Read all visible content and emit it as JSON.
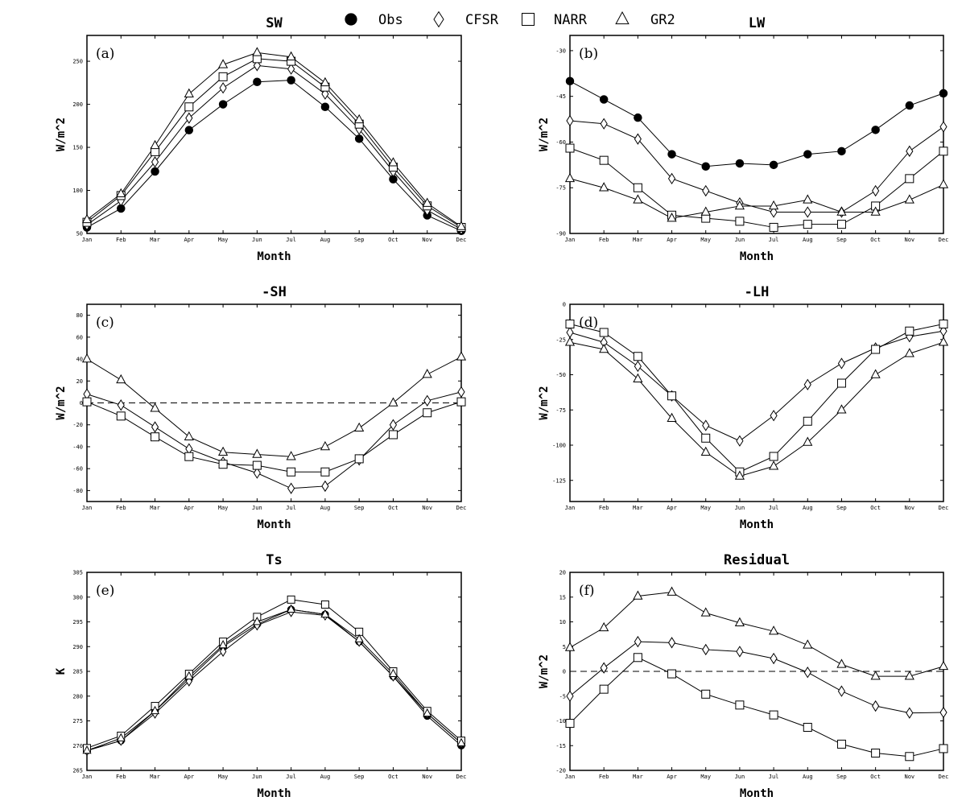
{
  "legend": {
    "entries": [
      {
        "name": "Obs",
        "marker": "circle-filled"
      },
      {
        "name": "CFSR",
        "marker": "diamond"
      },
      {
        "name": "NARR",
        "marker": "square"
      },
      {
        "name": "GR2",
        "marker": "triangle"
      }
    ]
  },
  "chart_data": [
    {
      "type": "line",
      "id": "a",
      "title": "SW",
      "tag": "(a)",
      "xlabel": "Month",
      "ylabel": "W/m^2",
      "categories": [
        "Jan",
        "Feb",
        "Mar",
        "Apr",
        "May",
        "Jun",
        "Jul",
        "Aug",
        "Sep",
        "Oct",
        "Nov",
        "Dec"
      ],
      "ylim": [
        50,
        280
      ],
      "yticks": [
        50,
        100,
        150,
        200,
        250
      ],
      "zero_line": false,
      "series": [
        {
          "name": "Obs",
          "marker": "circle-filled",
          "values": [
            57,
            79,
            122,
            170,
            200,
            226,
            228,
            197,
            160,
            113,
            71,
            53
          ]
        },
        {
          "name": "CFSR",
          "marker": "diamond",
          "values": [
            60,
            88,
            133,
            184,
            219,
            245,
            241,
            212,
            171,
            122,
            77,
            55
          ]
        },
        {
          "name": "NARR",
          "marker": "square",
          "values": [
            63,
            94,
            145,
            197,
            232,
            253,
            250,
            220,
            177,
            127,
            82,
            57
          ]
        },
        {
          "name": "GR2",
          "marker": "triangle",
          "values": [
            66,
            96,
            152,
            212,
            246,
            260,
            255,
            225,
            182,
            132,
            85,
            58
          ]
        }
      ]
    },
    {
      "type": "line",
      "id": "b",
      "title": "LW",
      "tag": "(b)",
      "xlabel": "Month",
      "ylabel": "W/m^2",
      "categories": [
        "Jan",
        "Feb",
        "Mar",
        "Apr",
        "May",
        "Jun",
        "Jul",
        "Aug",
        "Sep",
        "Oct",
        "Nov",
        "Dec"
      ],
      "ylim": [
        -90,
        -25
      ],
      "yticks": [
        -90,
        -75,
        -60,
        -45,
        -30
      ],
      "zero_line": false,
      "series": [
        {
          "name": "Obs",
          "marker": "circle-filled",
          "values": [
            -40,
            -46,
            -52,
            -64,
            -68,
            -67,
            -67.5,
            -64,
            -63,
            -56,
            -48,
            -44
          ]
        },
        {
          "name": "CFSR",
          "marker": "diamond",
          "values": [
            -53,
            -54,
            -59,
            -72,
            -76,
            -80,
            -83,
            -83,
            -83,
            -76,
            -63,
            -55
          ]
        },
        {
          "name": "NARR",
          "marker": "square",
          "values": [
            -62,
            -66,
            -75,
            -84,
            -85,
            -86,
            -88,
            -87,
            -87,
            -81,
            -72,
            -63
          ]
        },
        {
          "name": "GR2",
          "marker": "triangle",
          "values": [
            -72,
            -75,
            -79,
            -85,
            -83,
            -81,
            -81,
            -79,
            -83,
            -83,
            -79,
            -74
          ]
        }
      ]
    },
    {
      "type": "line",
      "id": "c",
      "title": "-SH",
      "tag": "(c)",
      "xlabel": "Month",
      "ylabel": "W/m^2",
      "categories": [
        "Jan",
        "Feb",
        "Mar",
        "Apr",
        "May",
        "Jun",
        "Jul",
        "Aug",
        "Sep",
        "Oct",
        "Nov",
        "Dec"
      ],
      "ylim": [
        -90,
        90
      ],
      "yticks": [
        -80,
        -60,
        -40,
        -20,
        0,
        20,
        40,
        60,
        80
      ],
      "zero_line": true,
      "series": [
        {
          "name": "CFSR",
          "marker": "diamond",
          "values": [
            8,
            -2,
            -22,
            -42,
            -54,
            -64,
            -78,
            -76,
            -52,
            -20,
            2,
            10
          ]
        },
        {
          "name": "NARR",
          "marker": "square",
          "values": [
            1,
            -12,
            -31,
            -49,
            -56,
            -57,
            -63,
            -63,
            -51,
            -29,
            -9,
            1
          ]
        },
        {
          "name": "GR2",
          "marker": "triangle",
          "values": [
            40,
            21,
            -5,
            -31,
            -45,
            -47,
            -49,
            -40,
            -23,
            0,
            26,
            42
          ]
        }
      ]
    },
    {
      "type": "line",
      "id": "d",
      "title": "-LH",
      "tag": "(d)",
      "xlabel": "Month",
      "ylabel": "W/m^2",
      "categories": [
        "Jan",
        "Feb",
        "Mar",
        "Apr",
        "May",
        "Jun",
        "Jul",
        "Aug",
        "Sep",
        "Oct",
        "Nov",
        "Dec"
      ],
      "ylim": [
        -140,
        0
      ],
      "yticks": [
        -125,
        -100,
        -75,
        -50,
        -25,
        0
      ],
      "zero_line": false,
      "series": [
        {
          "name": "CFSR",
          "marker": "diamond",
          "values": [
            -20,
            -27,
            -44,
            -65,
            -86,
            -97,
            -79,
            -57,
            -42,
            -31,
            -23,
            -19
          ]
        },
        {
          "name": "NARR",
          "marker": "square",
          "values": [
            -14,
            -20,
            -37,
            -65,
            -95,
            -119,
            -108,
            -83,
            -56,
            -32,
            -19,
            -14
          ]
        },
        {
          "name": "GR2",
          "marker": "triangle",
          "values": [
            -27,
            -32,
            -53,
            -81,
            -105,
            -122,
            -115,
            -98,
            -75,
            -50,
            -35,
            -27
          ]
        }
      ]
    },
    {
      "type": "line",
      "id": "e",
      "title": "Ts",
      "tag": "(e)",
      "xlabel": "Month",
      "ylabel": "K",
      "categories": [
        "Jan",
        "Feb",
        "Mar",
        "Apr",
        "May",
        "Jun",
        "Jul",
        "Aug",
        "Sep",
        "Oct",
        "Nov",
        "Dec"
      ],
      "ylim": [
        265,
        305
      ],
      "yticks": [
        265,
        270,
        275,
        280,
        285,
        290,
        295,
        300,
        305
      ],
      "zero_line": false,
      "series": [
        {
          "name": "Obs",
          "marker": "circle-filled",
          "values": [
            269,
            271,
            277,
            283.5,
            290,
            294.5,
            297.5,
            296.5,
            291,
            284,
            276,
            270
          ]
        },
        {
          "name": "CFSR",
          "marker": "diamond",
          "values": [
            269,
            271,
            276.5,
            283,
            289,
            294.3,
            297,
            296.3,
            291,
            284,
            276.5,
            270.5
          ]
        },
        {
          "name": "NARR",
          "marker": "square",
          "values": [
            269.5,
            272,
            278,
            284.5,
            291,
            296,
            299.5,
            298.5,
            293,
            285,
            277,
            271
          ]
        },
        {
          "name": "GR2",
          "marker": "triangle",
          "values": [
            269,
            271.5,
            277,
            284,
            290.3,
            295,
            297.5,
            296.5,
            291.5,
            284.5,
            276.5,
            270.5
          ]
        }
      ]
    },
    {
      "type": "line",
      "id": "f",
      "title": "Residual",
      "tag": "(f)",
      "xlabel": "Month",
      "ylabel": "W/m^2",
      "categories": [
        "Jan",
        "Feb",
        "Mar",
        "Apr",
        "May",
        "Jun",
        "Jul",
        "Aug",
        "Sep",
        "Oct",
        "Nov",
        "Dec"
      ],
      "ylim": [
        -20,
        20
      ],
      "yticks": [
        -20,
        -15,
        -10,
        -5,
        0,
        5,
        10,
        15,
        20
      ],
      "zero_line": true,
      "series": [
        {
          "name": "CFSR",
          "marker": "diamond",
          "values": [
            -5,
            0.7,
            6,
            5.8,
            4.4,
            4,
            2.6,
            -0.2,
            -4,
            -7,
            -8.4,
            -8.3
          ]
        },
        {
          "name": "NARR",
          "marker": "square",
          "values": [
            -10.5,
            -3.6,
            2.8,
            -0.5,
            -4.6,
            -6.8,
            -8.8,
            -11.3,
            -14.7,
            -16.5,
            -17.2,
            -15.6
          ]
        },
        {
          "name": "GR2",
          "marker": "triangle",
          "values": [
            4.8,
            8.8,
            15.2,
            16,
            11.8,
            9.8,
            8.1,
            5.3,
            1.4,
            -1,
            -1,
            1
          ]
        }
      ]
    }
  ]
}
